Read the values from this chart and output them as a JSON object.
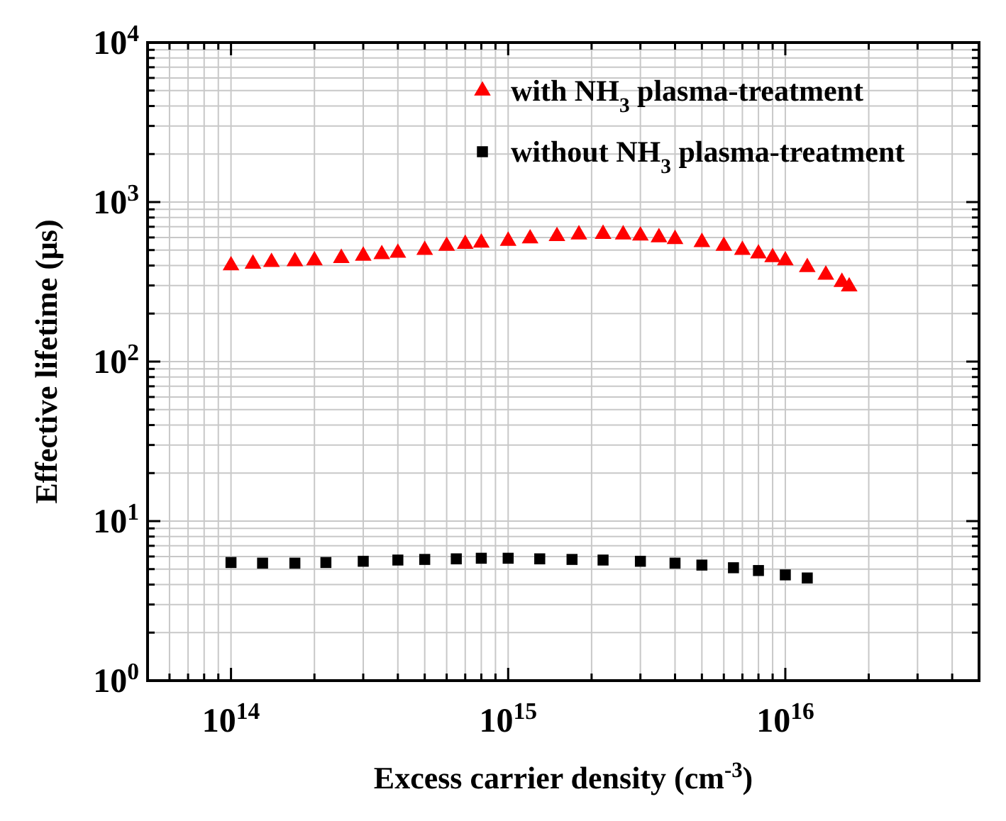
{
  "chart_data": {
    "type": "scatter",
    "xlabel": "Excess carrier density (cm$^{-3}$)",
    "ylabel": "Effective lifetime (μs)",
    "log": "xy",
    "grid": true,
    "legend": "top right",
    "xlim": [
      50000000000000.0,
      5e+16
    ],
    "ylim": [
      1,
      10000
    ],
    "xticks": [
      {
        "value": 60000000000000.0,
        "label": null
      },
      {
        "value": 70000000000000.0,
        "label": null
      },
      {
        "value": 80000000000000.0,
        "label": null
      },
      {
        "value": 90000000000000.0,
        "label": null
      },
      {
        "value": 100000000000000.0,
        "label": "10$^{14}$"
      },
      {
        "value": 200000000000000.0,
        "label": null
      },
      {
        "value": 300000000000000.0,
        "label": null
      },
      {
        "value": 400000000000000.0,
        "label": null
      },
      {
        "value": 500000000000000.0,
        "label": null
      },
      {
        "value": 600000000000000.0,
        "label": null
      },
      {
        "value": 700000000000000.0,
        "label": null
      },
      {
        "value": 800000000000000.0,
        "label": null
      },
      {
        "value": 900000000000000.0,
        "label": null
      },
      {
        "value": 1000000000000000.0,
        "label": "10$^{15}$"
      },
      {
        "value": 2000000000000000.0,
        "label": null
      },
      {
        "value": 3000000000000000.0,
        "label": null
      },
      {
        "value": 4000000000000000.0,
        "label": null
      },
      {
        "value": 5000000000000000.0,
        "label": null
      },
      {
        "value": 6000000000000000.0,
        "label": null
      },
      {
        "value": 7000000000000000.0,
        "label": null
      },
      {
        "value": 8000000000000000.0,
        "label": null
      },
      {
        "value": 9000000000000000.0,
        "label": null
      },
      {
        "value": 1e+16,
        "label": "10$^{16}$"
      },
      {
        "value": 2e+16,
        "label": null
      },
      {
        "value": 3e+16,
        "label": null
      },
      {
        "value": 4e+16,
        "label": null
      }
    ],
    "yticks": [
      {
        "value": 1,
        "label": "10$^{0}$"
      },
      {
        "value": 2,
        "label": null
      },
      {
        "value": 3,
        "label": null
      },
      {
        "value": 4,
        "label": null
      },
      {
        "value": 5,
        "label": null
      },
      {
        "value": 6,
        "label": null
      },
      {
        "value": 7,
        "label": null
      },
      {
        "value": 8,
        "label": null
      },
      {
        "value": 9,
        "label": null
      },
      {
        "value": 10,
        "label": "10$^{1}$"
      },
      {
        "value": 20,
        "label": null
      },
      {
        "value": 30,
        "label": null
      },
      {
        "value": 40,
        "label": null
      },
      {
        "value": 50,
        "label": null
      },
      {
        "value": 60,
        "label": null
      },
      {
        "value": 70,
        "label": null
      },
      {
        "value": 80,
        "label": null
      },
      {
        "value": 90,
        "label": null
      },
      {
        "value": 100,
        "label": "10$^{2}$"
      },
      {
        "value": 200,
        "label": null
      },
      {
        "value": 300,
        "label": null
      },
      {
        "value": 400,
        "label": null
      },
      {
        "value": 500,
        "label": null
      },
      {
        "value": 600,
        "label": null
      },
      {
        "value": 700,
        "label": null
      },
      {
        "value": 800,
        "label": null
      },
      {
        "value": 900,
        "label": null
      },
      {
        "value": 1000,
        "label": "10$^{3}$"
      },
      {
        "value": 2000,
        "label": null
      },
      {
        "value": 3000,
        "label": null
      },
      {
        "value": 4000,
        "label": null
      },
      {
        "value": 5000,
        "label": null
      },
      {
        "value": 6000,
        "label": null
      },
      {
        "value": 7000,
        "label": null
      },
      {
        "value": 8000,
        "label": null
      },
      {
        "value": 9000,
        "label": null
      },
      {
        "value": 10000,
        "label": "10$^{4}$"
      }
    ],
    "series": [
      {
        "name": "with NH$_{3}$ plasma-treatment",
        "color": "#ff0000",
        "marker": "triangle",
        "x": [
          100000000000000.0,
          120000000000000.0,
          140000000000000.0,
          170000000000000.0,
          200000000000000.0,
          250000000000000.0,
          300000000000000.0,
          350000000000000.0,
          400000000000000.0,
          500000000000000.0,
          600000000000000.0,
          700000000000000.0,
          800000000000000.0,
          1000000000000000.0,
          1200000000000000.0,
          1500000000000000.0,
          1800000000000000.0,
          2200000000000000.0,
          2600000000000000.0,
          3000000000000000.0,
          3500000000000000.0,
          4000000000000000.0,
          5000000000000000.0,
          6000000000000000.0,
          7000000000000000.0,
          8000000000000000.0,
          9000000000000000.0,
          1e+16,
          1.2e+16,
          1.4e+16,
          1.6e+16,
          1.7e+16
        ],
        "values": [
          400,
          410,
          420,
          425,
          430,
          445,
          460,
          470,
          480,
          500,
          530,
          545,
          555,
          570,
          590,
          610,
          625,
          630,
          625,
          615,
          600,
          585,
          560,
          530,
          500,
          475,
          450,
          430,
          390,
          350,
          315,
          295
        ]
      },
      {
        "name": "without NH$_{3}$ plasma-treatment",
        "color": "#000000",
        "marker": "square",
        "x": [
          100000000000000.0,
          130000000000000.0,
          170000000000000.0,
          220000000000000.0,
          300000000000000.0,
          400000000000000.0,
          500000000000000.0,
          650000000000000.0,
          800000000000000.0,
          1000000000000000.0,
          1300000000000000.0,
          1700000000000000.0,
          2200000000000000.0,
          3000000000000000.0,
          4000000000000000.0,
          5000000000000000.0,
          6500000000000000.0,
          8000000000000000.0,
          1e+16,
          1.2e+16
        ],
        "values": [
          5.5,
          5.45,
          5.45,
          5.5,
          5.6,
          5.7,
          5.75,
          5.8,
          5.85,
          5.85,
          5.8,
          5.75,
          5.7,
          5.6,
          5.45,
          5.3,
          5.1,
          4.9,
          4.6,
          4.4
        ]
      }
    ]
  }
}
